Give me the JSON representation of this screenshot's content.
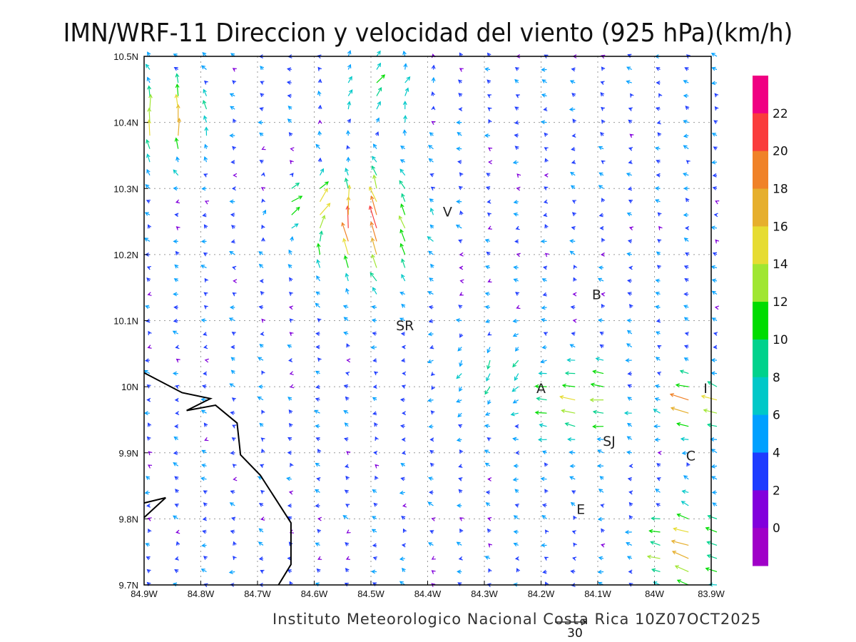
{
  "title": "IMN/WRF-11 Direccion y velocidad del viento (925 hPa)(km/h)",
  "footer": "Instituto Meteorologico Nacional Costa Rica  10Z07OCT2025",
  "reference_vector": {
    "label": "30",
    "speed_kmh": 30
  },
  "map": {
    "lon_range": [
      -84.9,
      -83.9
    ],
    "lat_range": [
      9.7,
      10.5
    ],
    "x_ticks": [
      {
        "lon": -84.9,
        "label": "84.9W"
      },
      {
        "lon": -84.8,
        "label": "84.8W"
      },
      {
        "lon": -84.7,
        "label": "84.7W"
      },
      {
        "lon": -84.6,
        "label": "84.6W"
      },
      {
        "lon": -84.5,
        "label": "84.5W"
      },
      {
        "lon": -84.4,
        "label": "84.4W"
      },
      {
        "lon": -84.3,
        "label": "84.3W"
      },
      {
        "lon": -84.2,
        "label": "84.2W"
      },
      {
        "lon": -84.1,
        "label": "84.1W"
      },
      {
        "lon": -84.0,
        "label": "84W"
      },
      {
        "lon": -83.9,
        "label": "83.9W"
      }
    ],
    "y_ticks": [
      {
        "lat": 10.5,
        "label": "10.5N"
      },
      {
        "lat": 10.4,
        "label": "10.4N"
      },
      {
        "lat": 10.3,
        "label": "10.3N"
      },
      {
        "lat": 10.2,
        "label": "10.2N"
      },
      {
        "lat": 10.1,
        "label": "10.1N"
      },
      {
        "lat": 10.0,
        "label": "10N"
      },
      {
        "lat": 9.9,
        "label": "9.9N"
      },
      {
        "lat": 9.8,
        "label": "9.8N"
      },
      {
        "lat": 9.7,
        "label": "9.7N"
      }
    ],
    "stations": [
      {
        "label": "V",
        "lon": -84.365,
        "lat": 10.265
      },
      {
        "label": "B",
        "lon": -84.102,
        "lat": 10.14
      },
      {
        "label": "SR",
        "lon": -84.44,
        "lat": 10.093
      },
      {
        "label": "A",
        "lon": -84.2,
        "lat": 9.998
      },
      {
        "label": "I",
        "lon": -83.91,
        "lat": 9.998
      },
      {
        "label": "SJ",
        "lon": -84.08,
        "lat": 9.918
      },
      {
        "label": "C",
        "lon": -83.936,
        "lat": 9.896
      },
      {
        "label": "E",
        "lon": -84.13,
        "lat": 9.815
      }
    ],
    "coastline": [
      [
        [
          -84.9,
          10.021
        ],
        [
          -84.833,
          9.991
        ],
        [
          -84.783,
          9.982
        ],
        [
          -84.825,
          9.964
        ],
        [
          -84.774,
          9.972
        ],
        [
          -84.736,
          9.945
        ],
        [
          -84.73,
          9.897
        ],
        [
          -84.695,
          9.866
        ],
        [
          -84.641,
          9.794
        ],
        [
          -84.641,
          9.731
        ],
        [
          -84.663,
          9.7
        ]
      ],
      [
        [
          -84.9,
          9.824
        ],
        [
          -84.862,
          9.832
        ],
        [
          -84.9,
          9.802
        ]
      ]
    ]
  },
  "colorbar": {
    "labels": [
      "22",
      "20",
      "18",
      "16",
      "14",
      "12",
      "10",
      "8",
      "6",
      "4",
      "2",
      "0"
    ],
    "colors": [
      "#f00082",
      "#fa3c3c",
      "#f08228",
      "#e6af2d",
      "#e6dc32",
      "#a0e632",
      "#00dc00",
      "#00d28c",
      "#00c8c8",
      "#00a0ff",
      "#1e3cff",
      "#8200dc",
      "#a000c8"
    ],
    "thresholds_kmh": [
      22,
      20,
      18,
      16,
      14,
      12,
      10,
      8,
      6,
      4,
      2,
      0
    ]
  },
  "wind_field": {
    "units": "km/h",
    "grid_spacing_deg": {
      "lon": 0.05,
      "lat": 0.02
    },
    "background": {
      "u": -3.0,
      "v": 1.2
    },
    "features": [
      {
        "lon": -84.52,
        "lat": 10.24,
        "radius_deg": 0.09,
        "u": -4,
        "v": 20
      },
      {
        "lon": -84.62,
        "lat": 10.27,
        "radius_deg": 0.07,
        "u": 14,
        "v": 3
      },
      {
        "lon": -84.87,
        "lat": 10.4,
        "radius_deg": 0.07,
        "u": 3,
        "v": 17
      },
      {
        "lon": -84.3,
        "lat": 10.02,
        "radius_deg": 0.08,
        "u": 0,
        "v": -9
      },
      {
        "lon": -84.15,
        "lat": 9.98,
        "radius_deg": 0.08,
        "u": -11,
        "v": 1
      },
      {
        "lon": -83.95,
        "lat": 9.75,
        "radius_deg": 0.07,
        "u": -13,
        "v": 4
      },
      {
        "lon": -83.93,
        "lat": 9.97,
        "radius_deg": 0.05,
        "u": -16,
        "v": 4
      },
      {
        "lon": -84.5,
        "lat": 10.45,
        "radius_deg": 0.08,
        "u": 9,
        "v": 8
      }
    ]
  }
}
